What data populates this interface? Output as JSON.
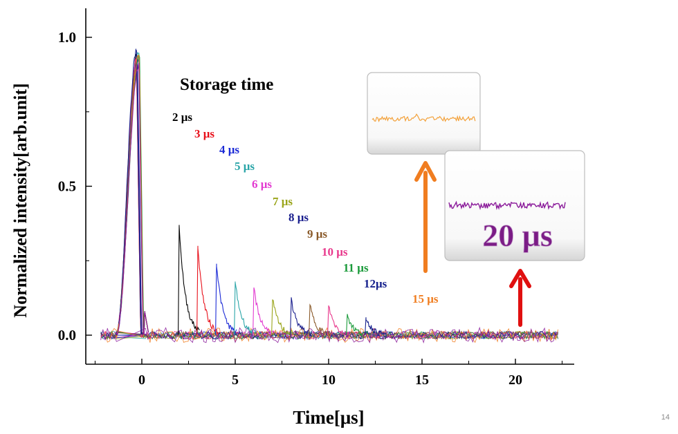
{
  "page": {
    "number": "14"
  },
  "chart_data": {
    "type": "line",
    "title": "",
    "xlabel": "Time[μs]",
    "ylabel": "Normalized intensity[arb.unit]",
    "xlim": [
      -2.5,
      22.5
    ],
    "ylim": [
      -0.09,
      1.11
    ],
    "xticks": [
      0,
      5,
      10,
      15,
      20
    ],
    "yticks": [
      0.0,
      0.5,
      1.0
    ],
    "ytick_labels": [
      "0.0",
      "0.5",
      "1.0"
    ],
    "grid": false,
    "legend_heading": "Storage time",
    "initial_pulse": {
      "center": -0.2,
      "peak": 0.96,
      "start": -1.4,
      "end": 0.1
    },
    "series": [
      {
        "name": "2 μs",
        "label": "2 μs",
        "color": "#000000",
        "delay": 2,
        "peak": 0.37
      },
      {
        "name": "3 μs",
        "label": "3 μs",
        "color": "#e8101a",
        "delay": 3,
        "peak": 0.3
      },
      {
        "name": "4 μs",
        "label": "4 μs",
        "color": "#1c2bd6",
        "delay": 4,
        "peak": 0.24
      },
      {
        "name": "5 μs",
        "label": "5 μs",
        "color": "#2aa5a8",
        "delay": 5,
        "peak": 0.18
      },
      {
        "name": "6 μs",
        "label": "6 μs",
        "color": "#e23ad0",
        "delay": 6,
        "peak": 0.16
      },
      {
        "name": "7 μs",
        "label": "7 μs",
        "color": "#9aa51a",
        "delay": 7,
        "peak": 0.12
      },
      {
        "name": "8 μs",
        "label": "8 μs",
        "color": "#1a1f8e",
        "delay": 8,
        "peak": 0.12
      },
      {
        "name": "9 μs",
        "label": "9 μs",
        "color": "#8a5a2a",
        "delay": 9,
        "peak": 0.1
      },
      {
        "name": "10 μs",
        "label": "10 μs",
        "color": "#e8388c",
        "delay": 10,
        "peak": 0.1
      },
      {
        "name": "11 μs",
        "label": "11 μs",
        "color": "#1a9a3a",
        "delay": 11,
        "peak": 0.07
      },
      {
        "name": "12μs",
        "label": "12μs",
        "color": "#15208c",
        "delay": 12,
        "peak": 0.06
      },
      {
        "name": "15 μs",
        "label": "15 μs",
        "color": "#f07d20",
        "delay": 15,
        "peak": 0.02
      },
      {
        "name": "20 μs",
        "label": "20 μs",
        "color": "#8a1a9a",
        "delay": 20,
        "peak": 0.03
      }
    ],
    "insets": [
      {
        "series": "15 μs",
        "caption": "",
        "color": "#f3a13a"
      },
      {
        "series": "20 μs",
        "caption": "20 μs",
        "color": "#8a1a9a"
      }
    ],
    "arrows": [
      {
        "target": "15 μs inset",
        "color": "#f07d20"
      },
      {
        "target": "20 μs inset",
        "color": "#e01010"
      }
    ]
  }
}
